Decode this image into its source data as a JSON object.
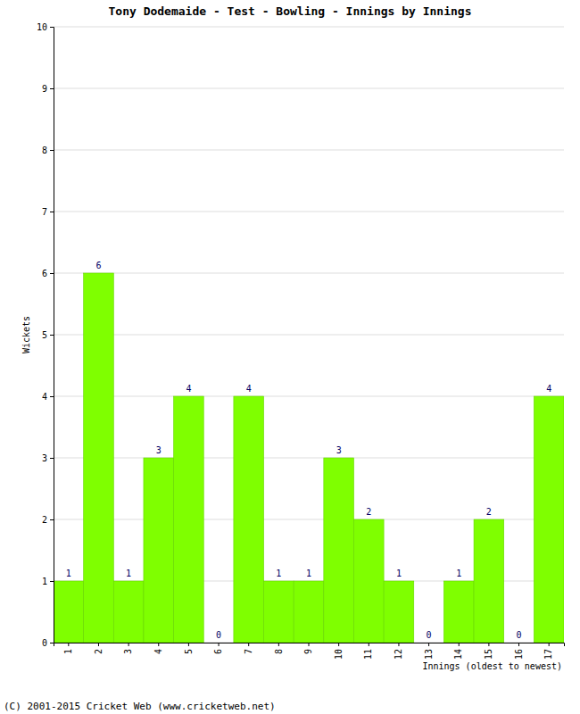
{
  "chart_data": {
    "type": "bar",
    "title": "Tony Dodemaide - Test - Bowling - Innings by Innings",
    "x_label": "Innings (oldest to newest)",
    "y_label": "Wickets",
    "annotations": [
      "(C) 2001-2015 Cricket Web (www.cricketweb.net)"
    ],
    "categories": [
      "1",
      "2",
      "3",
      "4",
      "5",
      "6",
      "7",
      "8",
      "9",
      "10",
      "11",
      "12",
      "13",
      "14",
      "15",
      "16",
      "17"
    ],
    "values": [
      1,
      6,
      1,
      3,
      4,
      0,
      4,
      1,
      1,
      3,
      2,
      1,
      0,
      1,
      2,
      0,
      4
    ],
    "color": "#7fff00",
    "ylim": [
      0,
      10
    ],
    "yticks": [
      0,
      1,
      2,
      3,
      4,
      5,
      6,
      7,
      8,
      9,
      10
    ],
    "grid": true,
    "data_labels": true
  }
}
